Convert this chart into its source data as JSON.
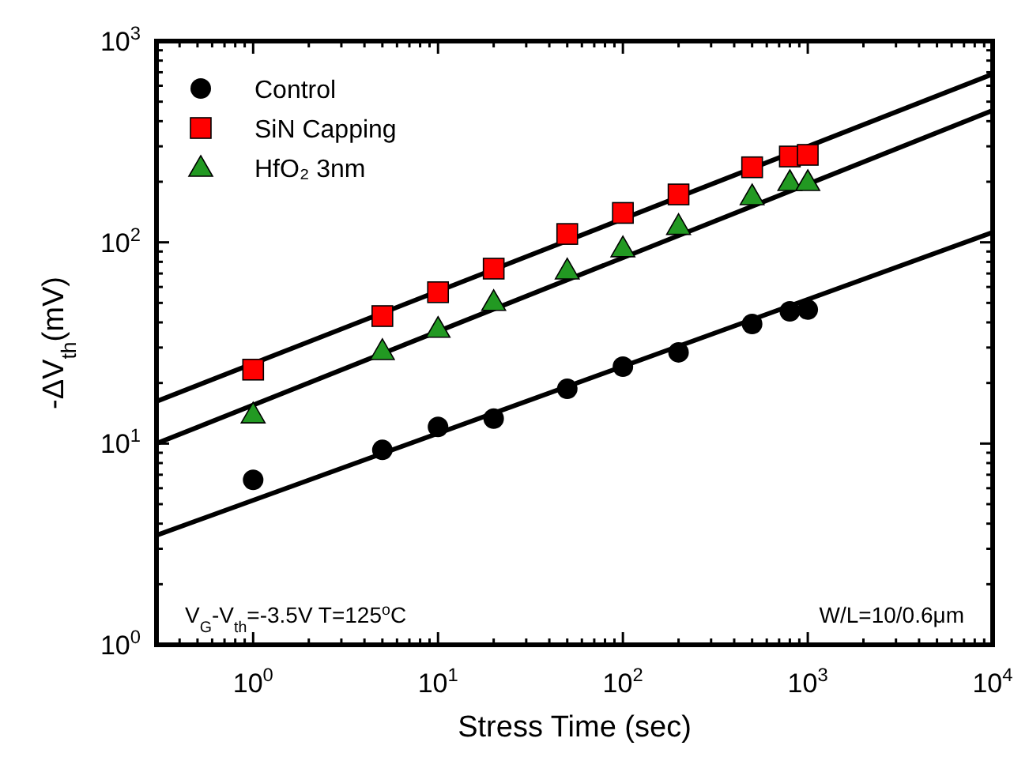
{
  "chart_data": {
    "type": "scatter",
    "xlabel": "Stress Time (sec)",
    "ylabel": "-ΔV$_{th}$(mV)",
    "log": "xy",
    "grid": false,
    "legend": "top left",
    "xlim": [
      0.3,
      10000
    ],
    "ylim": [
      1,
      1000
    ],
    "xticks": [
      {
        "value": 0.3,
        "label": null
      },
      {
        "value": 0.4,
        "label": null
      },
      {
        "value": 0.5,
        "label": null
      },
      {
        "value": 0.6,
        "label": null
      },
      {
        "value": 0.7,
        "label": null
      },
      {
        "value": 0.8,
        "label": null
      },
      {
        "value": 0.9,
        "label": null
      },
      {
        "value": 1,
        "label": "10$^{0}$"
      },
      {
        "value": 2,
        "label": null
      },
      {
        "value": 3,
        "label": null
      },
      {
        "value": 4,
        "label": null
      },
      {
        "value": 5,
        "label": null
      },
      {
        "value": 6,
        "label": null
      },
      {
        "value": 7,
        "label": null
      },
      {
        "value": 8,
        "label": null
      },
      {
        "value": 9,
        "label": null
      },
      {
        "value": 10,
        "label": "10$^{1}$"
      },
      {
        "value": 20,
        "label": null
      },
      {
        "value": 30,
        "label": null
      },
      {
        "value": 40,
        "label": null
      },
      {
        "value": 50,
        "label": null
      },
      {
        "value": 60,
        "label": null
      },
      {
        "value": 70,
        "label": null
      },
      {
        "value": 80,
        "label": null
      },
      {
        "value": 90,
        "label": null
      },
      {
        "value": 100,
        "label": "10$^{2}$"
      },
      {
        "value": 200,
        "label": null
      },
      {
        "value": 300,
        "label": null
      },
      {
        "value": 400,
        "label": null
      },
      {
        "value": 500,
        "label": null
      },
      {
        "value": 600,
        "label": null
      },
      {
        "value": 700,
        "label": null
      },
      {
        "value": 800,
        "label": null
      },
      {
        "value": 900,
        "label": null
      },
      {
        "value": 1000,
        "label": "10$^{3}$"
      },
      {
        "value": 2000,
        "label": null
      },
      {
        "value": 3000,
        "label": null
      },
      {
        "value": 4000,
        "label": null
      },
      {
        "value": 5000,
        "label": null
      },
      {
        "value": 6000,
        "label": null
      },
      {
        "value": 7000,
        "label": null
      },
      {
        "value": 8000,
        "label": null
      },
      {
        "value": 9000,
        "label": null
      },
      {
        "value": 10000,
        "label": "10$^{4}$"
      }
    ],
    "yticks": [
      {
        "value": 1,
        "label": "10$^{0}$"
      },
      {
        "value": 2,
        "label": null
      },
      {
        "value": 3,
        "label": null
      },
      {
        "value": 4,
        "label": null
      },
      {
        "value": 5,
        "label": null
      },
      {
        "value": 6,
        "label": null
      },
      {
        "value": 7,
        "label": null
      },
      {
        "value": 8,
        "label": null
      },
      {
        "value": 9,
        "label": null
      },
      {
        "value": 10,
        "label": "10$^{1}$"
      },
      {
        "value": 20,
        "label": null
      },
      {
        "value": 30,
        "label": null
      },
      {
        "value": 40,
        "label": null
      },
      {
        "value": 50,
        "label": null
      },
      {
        "value": 60,
        "label": null
      },
      {
        "value": 70,
        "label": null
      },
      {
        "value": 80,
        "label": null
      },
      {
        "value": 90,
        "label": null
      },
      {
        "value": 100,
        "label": "10$^{2}$"
      },
      {
        "value": 200,
        "label": null
      },
      {
        "value": 300,
        "label": null
      },
      {
        "value": 400,
        "label": null
      },
      {
        "value": 500,
        "label": null
      },
      {
        "value": 600,
        "label": null
      },
      {
        "value": 700,
        "label": null
      },
      {
        "value": 800,
        "label": null
      },
      {
        "value": 900,
        "label": null
      },
      {
        "value": 1000,
        "label": "10$^{3}$"
      }
    ],
    "series": [
      {
        "name": "Control",
        "color": "#000000",
        "marker": "circle",
        "x": [
          1,
          5,
          10,
          20,
          50,
          100,
          200,
          500,
          800,
          1000
        ],
        "values": [
          6.6,
          9.3,
          12.1,
          13.3,
          18.7,
          24.1,
          28.4,
          39.3,
          45.4,
          46.3
        ]
      },
      {
        "name": "SiN Capping",
        "color": "#ff0000",
        "marker": "square",
        "x": [
          1,
          5,
          10,
          20,
          50,
          100,
          200,
          500,
          800,
          1000
        ],
        "values": [
          23.3,
          43,
          56.5,
          74,
          110,
          140,
          173,
          236,
          267,
          272
        ]
      },
      {
        "name": "HfO₂ 3nm",
        "color": "#229922",
        "marker": "triangle",
        "x": [
          1,
          5,
          10,
          20,
          50,
          100,
          200,
          500,
          800,
          1000
        ],
        "values": [
          14,
          28.9,
          37.3,
          50.7,
          72.7,
          93.7,
          121,
          170,
          200,
          200
        ]
      },
      {
        "type": "line",
        "color": "#000000",
        "marker": "none",
        "line_style": "solid",
        "x": [
          0.3,
          10000
        ],
        "values": [
          3.5,
          112
        ]
      },
      {
        "type": "line",
        "color": "#000000",
        "marker": "none",
        "line_style": "solid",
        "x": [
          0.3,
          10000
        ],
        "values": [
          16.2,
          685
        ]
      },
      {
        "type": "line",
        "color": "#000000",
        "marker": "none",
        "line_style": "solid",
        "x": [
          0.3,
          10000
        ],
        "values": [
          10,
          452
        ]
      }
    ],
    "annotations": [
      "V$_{G}$-V$_{th}$=-3.5V T=125$^{o}$C",
      "W/L=10/0.6μm"
    ]
  }
}
